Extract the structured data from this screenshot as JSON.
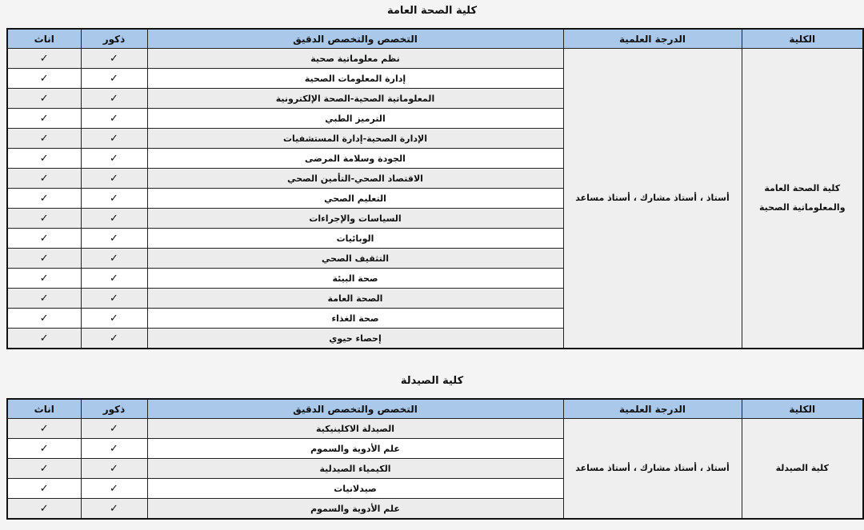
{
  "headers": {
    "college": "الكلية",
    "degree": "الدرجة العلمية",
    "specialization": "التخصص والتخصص الدقيق",
    "male": "ذكور",
    "female": "اناث"
  },
  "check_mark": "✓",
  "sections": [
    {
      "title": "كلية الصحة العامة",
      "college_line1": "كلية الصحة العامة",
      "college_line2": "والمعلوماتية الصحية",
      "degree": "أستاذ ، أستاذ مشارك ، أستاذ مساعد",
      "rows": [
        "نظم معلوماتية صحية",
        "إدارة المعلومات الصحية",
        "المعلوماتية الصحية-الصحة الإلكترونية",
        "الترميز الطبي",
        "الإدارة الصحية-إدارة المستشفيات",
        "الجودة وسلامة المرضى",
        "الاقتصاد الصحي-التأمين الصحي",
        "التعليم الصحي",
        "السياسات والإجراءات",
        "الوبائيات",
        "التثقيف الصحي",
        "صحة البيئة",
        "الصحة العامة",
        "صحة الغذاء",
        "إحصاء حيوي"
      ]
    },
    {
      "title": "كلية الصيدلة",
      "college_line1": "كلية الصيدلة",
      "college_line2": "",
      "degree": "أستاذ ، أستاذ مشارك ، أستاذ مساعد",
      "rows": [
        "الصيدلة الاكلينيكية",
        "علم الأدوية والسموم",
        "الكيمياء الصيدلية",
        "صيدلانيات",
        "علم الأدوية والسموم"
      ]
    }
  ]
}
